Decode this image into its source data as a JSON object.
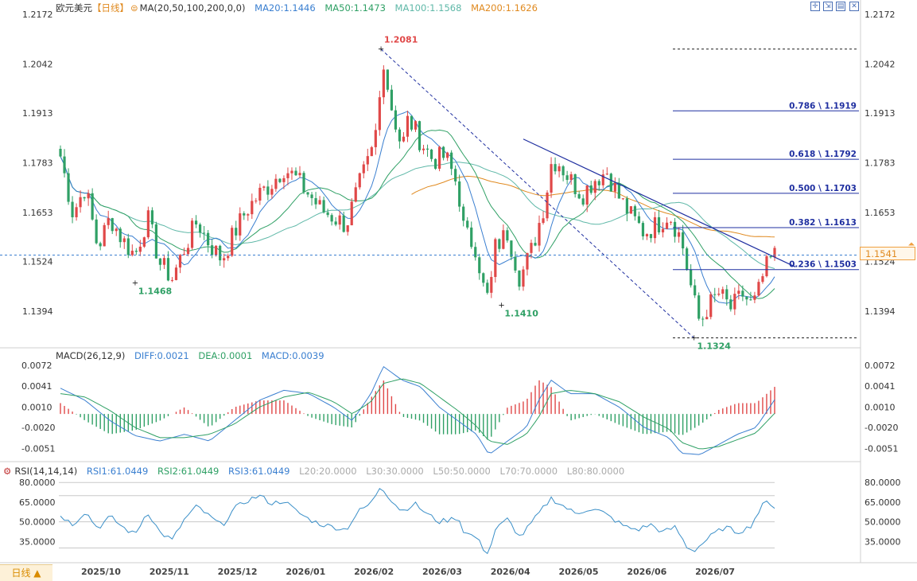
{
  "header": {
    "symbol": "欧元美元",
    "period": "【日线】",
    "ma_label": "MA(20,50,100,200,0,0)",
    "ma20": "MA20:1.1446",
    "ma50": "MA50:1.1473",
    "ma100": "MA100:1.1568",
    "ma200": "MA200:1.1626"
  },
  "macd_header": {
    "label": "MACD(26,12,9)",
    "diff": "DIFF:0.0021",
    "dea": "DEA:0.0001",
    "macd": "MACD:0.0039"
  },
  "rsi_header": {
    "label": "RSI(14,14,14)",
    "rsi1": "RSI1:61.0449",
    "rsi2": "RSI2:61.0449",
    "rsi3": "RSI3:61.0449",
    "l20": "L20:20.0000",
    "l30": "L30:30.0000",
    "l50": "L50:50.0000",
    "l70": "L70:70.0000",
    "l80": "L80:80.0000"
  },
  "period_tab": "日线 ▲",
  "current_price": "1.1541",
  "colors": {
    "up": "#e04848",
    "down": "#2fa065",
    "ma20": "#3a7fd0",
    "ma50": "#2fa065",
    "ma100": "#5fb8a8",
    "ma200": "#e08a20",
    "fib": "#1f2fa0",
    "trend": "#1f2fa0"
  },
  "chart_data": [
    {
      "type": "candlestick",
      "title": "欧元美元 日线",
      "y_ticks": [
        "1.2172",
        "1.2042",
        "1.1913",
        "1.1783",
        "1.1653",
        "1.1524",
        "1.1394"
      ],
      "x_ticks": [
        "2025/10",
        "2025/11",
        "2025/12",
        "2026/01",
        "2026/02",
        "2026/03",
        "2026/04",
        "2026/05",
        "2026/06",
        "2026/07"
      ],
      "ylim": [
        1.13,
        1.2172
      ],
      "annotations": [
        {
          "label": "1.1468",
          "value": 1.1468,
          "date": "2025/11"
        },
        {
          "label": "1.2081",
          "value": 1.2081,
          "date": "2026/01"
        },
        {
          "label": "1.1410",
          "value": 1.141,
          "date": "2026/03"
        },
        {
          "label": "1.1324",
          "value": 1.1324,
          "date": "2026/06"
        }
      ],
      "fibonacci": [
        {
          "label": "0.786 \\ 1.1919",
          "value": 1.1919
        },
        {
          "label": "0.618 \\ 1.1792",
          "value": 1.1792
        },
        {
          "label": "0.500 \\ 1.1703",
          "value": 1.1703
        },
        {
          "label": "0.382 \\ 1.1613",
          "value": 1.1613
        },
        {
          "label": "0.236 \\ 1.1503",
          "value": 1.1503
        }
      ],
      "fib_dashed_levels": [
        1.2081,
        1.1324
      ],
      "current_line": 1.1541,
      "ma_last": {
        "MA20": 1.1446,
        "MA50": 1.1473,
        "MA100": 1.1568,
        "MA200": 1.1626
      },
      "close_path": [
        [
          0,
          1.18
        ],
        [
          10,
          1.165
        ],
        [
          20,
          1.172
        ],
        [
          30,
          1.156
        ],
        [
          40,
          1.164
        ],
        [
          50,
          1.158
        ],
        [
          60,
          1.154
        ],
        [
          70,
          1.164
        ],
        [
          80,
          1.152
        ],
        [
          90,
          1.148
        ],
        [
          100,
          1.156
        ],
        [
          110,
          1.163
        ],
        [
          120,
          1.157
        ],
        [
          130,
          1.153
        ],
        [
          140,
          1.16
        ],
        [
          150,
          1.166
        ],
        [
          160,
          1.17
        ],
        [
          170,
          1.173
        ],
        [
          180,
          1.177
        ],
        [
          190,
          1.174
        ],
        [
          200,
          1.17
        ],
        [
          210,
          1.166
        ],
        [
          220,
          1.164
        ],
        [
          230,
          1.162
        ],
        [
          240,
          1.172
        ],
        [
          250,
          1.18
        ],
        [
          255,
          1.188
        ],
        [
          260,
          1.206
        ],
        [
          265,
          1.195
        ],
        [
          275,
          1.182
        ],
        [
          280,
          1.19
        ],
        [
          290,
          1.184
        ],
        [
          300,
          1.179
        ],
        [
          310,
          1.18
        ],
        [
          320,
          1.172
        ],
        [
          325,
          1.16
        ],
        [
          335,
          1.156
        ],
        [
          340,
          1.146
        ],
        [
          345,
          1.142
        ],
        [
          350,
          1.156
        ],
        [
          360,
          1.16
        ],
        [
          370,
          1.148
        ],
        [
          380,
          1.156
        ],
        [
          385,
          1.162
        ],
        [
          390,
          1.168
        ],
        [
          395,
          1.178
        ],
        [
          400,
          1.179
        ],
        [
          410,
          1.174
        ],
        [
          420,
          1.17
        ],
        [
          430,
          1.174
        ],
        [
          440,
          1.176
        ],
        [
          450,
          1.169
        ],
        [
          460,
          1.164
        ],
        [
          470,
          1.16
        ],
        [
          480,
          1.162
        ],
        [
          490,
          1.165
        ],
        [
          500,
          1.158
        ],
        [
          505,
          1.15
        ],
        [
          510,
          1.142
        ],
        [
          515,
          1.136
        ],
        [
          520,
          1.14
        ],
        [
          530,
          1.144
        ],
        [
          540,
          1.14
        ],
        [
          550,
          1.144
        ],
        [
          555,
          1.141
        ],
        [
          560,
          1.142
        ],
        [
          565,
          1.148
        ],
        [
          570,
          1.152
        ],
        [
          575,
          1.154
        ]
      ],
      "path_domain": [
        0,
        575
      ]
    },
    {
      "type": "bar+line",
      "title": "MACD(26,12,9)",
      "y_ticks": [
        "0.0072",
        "0.0041",
        "0.0010",
        "-0.0020",
        "-0.0051"
      ],
      "ylim": [
        -0.0068,
        0.008
      ],
      "series": [
        {
          "name": "DIFF",
          "points": [
            [
              0,
              0.0038
            ],
            [
              20,
              0.002
            ],
            [
              40,
              -0.001
            ],
            [
              60,
              -0.0032
            ],
            [
              80,
              -0.004
            ],
            [
              100,
              -0.003
            ],
            [
              120,
              -0.004
            ],
            [
              140,
              -0.001
            ],
            [
              160,
              0.002
            ],
            [
              180,
              0.0035
            ],
            [
              200,
              0.003
            ],
            [
              220,
              0.001
            ],
            [
              235,
              -0.001
            ],
            [
              250,
              0.003
            ],
            [
              260,
              0.007
            ],
            [
              275,
              0.005
            ],
            [
              290,
              0.004
            ],
            [
              305,
              0.001
            ],
            [
              320,
              -0.001
            ],
            [
              335,
              -0.003
            ],
            [
              345,
              -0.006
            ],
            [
              360,
              -0.004
            ],
            [
              375,
              -0.002
            ],
            [
              385,
              0.002
            ],
            [
              395,
              0.005
            ],
            [
              410,
              0.003
            ],
            [
              430,
              0.003
            ],
            [
              450,
              0.001
            ],
            [
              470,
              -0.002
            ],
            [
              490,
              -0.0035
            ],
            [
              500,
              -0.0058
            ],
            [
              515,
              -0.006
            ],
            [
              530,
              -0.0045
            ],
            [
              545,
              -0.003
            ],
            [
              560,
              -0.002
            ],
            [
              575,
              0.0021
            ]
          ]
        },
        {
          "name": "DEA",
          "points": [
            [
              0,
              0.003
            ],
            [
              20,
              0.0025
            ],
            [
              40,
              0.0005
            ],
            [
              60,
              -0.002
            ],
            [
              80,
              -0.0035
            ],
            [
              100,
              -0.0035
            ],
            [
              120,
              -0.003
            ],
            [
              140,
              -0.0015
            ],
            [
              160,
              0.001
            ],
            [
              180,
              0.0025
            ],
            [
              200,
              0.0032
            ],
            [
              220,
              0.0018
            ],
            [
              235,
              0.0
            ],
            [
              250,
              0.0018
            ],
            [
              260,
              0.0045
            ],
            [
              275,
              0.0052
            ],
            [
              290,
              0.0045
            ],
            [
              305,
              0.0025
            ],
            [
              320,
              0.0005
            ],
            [
              335,
              -0.0018
            ],
            [
              345,
              -0.004
            ],
            [
              360,
              -0.0045
            ],
            [
              375,
              -0.003
            ],
            [
              385,
              -0.0005
            ],
            [
              395,
              0.003
            ],
            [
              410,
              0.0035
            ],
            [
              430,
              0.003
            ],
            [
              450,
              0.0018
            ],
            [
              470,
              -0.0005
            ],
            [
              490,
              -0.0022
            ],
            [
              500,
              -0.0042
            ],
            [
              515,
              -0.0052
            ],
            [
              530,
              -0.0048
            ],
            [
              545,
              -0.0038
            ],
            [
              560,
              -0.0028
            ],
            [
              575,
              0.0001
            ]
          ]
        }
      ]
    },
    {
      "type": "line",
      "title": "RSI(14,14,14)",
      "y_ticks": [
        "80.0000",
        "65.0000",
        "50.0000",
        "35.0000"
      ],
      "ylim": [
        20,
        85
      ],
      "reference_lines": [
        80,
        70,
        50,
        30
      ],
      "points": [
        [
          0,
          55
        ],
        [
          10,
          48
        ],
        [
          20,
          58
        ],
        [
          30,
          45
        ],
        [
          40,
          54
        ],
        [
          50,
          46
        ],
        [
          60,
          40
        ],
        [
          70,
          58
        ],
        [
          80,
          42
        ],
        [
          90,
          36
        ],
        [
          100,
          52
        ],
        [
          110,
          62
        ],
        [
          120,
          54
        ],
        [
          130,
          47
        ],
        [
          140,
          60
        ],
        [
          150,
          66
        ],
        [
          160,
          70
        ],
        [
          170,
          64
        ],
        [
          180,
          66
        ],
        [
          190,
          58
        ],
        [
          200,
          52
        ],
        [
          210,
          48
        ],
        [
          220,
          46
        ],
        [
          230,
          44
        ],
        [
          240,
          58
        ],
        [
          250,
          64
        ],
        [
          258,
          78
        ],
        [
          265,
          68
        ],
        [
          275,
          58
        ],
        [
          285,
          64
        ],
        [
          295,
          56
        ],
        [
          305,
          50
        ],
        [
          315,
          52
        ],
        [
          320,
          54
        ],
        [
          325,
          42
        ],
        [
          335,
          38
        ],
        [
          340,
          30
        ],
        [
          345,
          26
        ],
        [
          350,
          44
        ],
        [
          360,
          52
        ],
        [
          370,
          38
        ],
        [
          380,
          50
        ],
        [
          385,
          56
        ],
        [
          390,
          62
        ],
        [
          395,
          68
        ],
        [
          405,
          62
        ],
        [
          415,
          56
        ],
        [
          425,
          60
        ],
        [
          435,
          58
        ],
        [
          445,
          52
        ],
        [
          455,
          46
        ],
        [
          465,
          44
        ],
        [
          475,
          48
        ],
        [
          485,
          42
        ],
        [
          495,
          46
        ],
        [
          500,
          38
        ],
        [
          505,
          30
        ],
        [
          510,
          28
        ],
        [
          515,
          32
        ],
        [
          525,
          40
        ],
        [
          535,
          46
        ],
        [
          545,
          42
        ],
        [
          555,
          46
        ],
        [
          565,
          62
        ],
        [
          570,
          66
        ],
        [
          575,
          61
        ]
      ]
    }
  ]
}
